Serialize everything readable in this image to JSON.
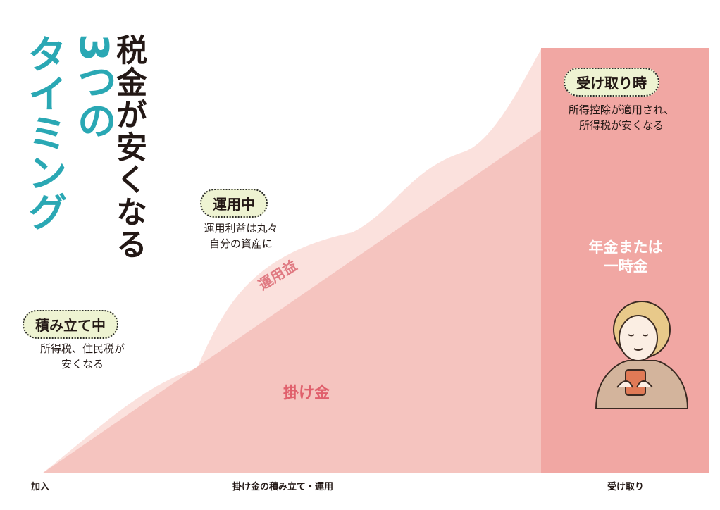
{
  "title": {
    "line1": "税金が安くなる",
    "line2": "3つの",
    "line3": "タイミング"
  },
  "stages": [
    {
      "badge": "積み立て中",
      "description": "所得税、住民税が\n安くなる"
    },
    {
      "badge": "運用中",
      "description": "運用利益は丸々\n自分の資産に"
    },
    {
      "badge": "受け取り時",
      "description": "所得控除が適用され、\n所得税が安くなる"
    }
  ],
  "areas": {
    "investment_gain": "運用益",
    "contributions": "掛け金",
    "payout": "年金または\n一時金"
  },
  "axis": {
    "start": "加入",
    "middle": "掛け金の積み立て・運用",
    "end": "受け取り"
  },
  "colors": {
    "teal": "#2aa8b4",
    "gain_area": "#fbe1dd",
    "contribution_area": "#f5c4bf",
    "payout_area": "#f1a7a3",
    "badge_bg": "#eef3d2"
  },
  "icons": [
    "elderly-person-with-cup-icon"
  ]
}
